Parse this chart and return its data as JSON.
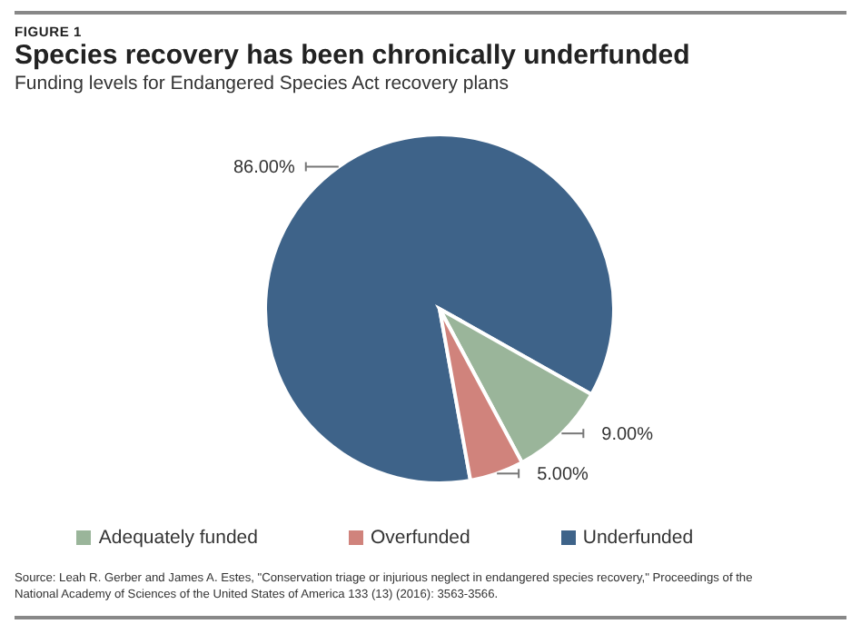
{
  "chart_data": {
    "type": "pie",
    "title": "Species recovery has been chronically underfunded",
    "subtitle": "Funding levels for Endangered Species Act recovery plans",
    "categories": [
      "Underfunded",
      "Adequately funded",
      "Overfunded"
    ],
    "values": [
      86,
      9,
      5
    ],
    "value_labels": [
      "86.00%",
      "9.00%",
      "5.00%"
    ],
    "colors": [
      "#3e6389",
      "#9ab59a",
      "#d0837c"
    ],
    "legend": "bottom",
    "annotations": [
      "FIGURE 1",
      "Source: Leah R. Gerber and James A. Estes, \"Conservation triage or injurious neglect in endangered species recovery,\" Proceedings of the National Academy of Sciences of the United States of America 133 (13) (2016): 3563-3566."
    ]
  }
}
